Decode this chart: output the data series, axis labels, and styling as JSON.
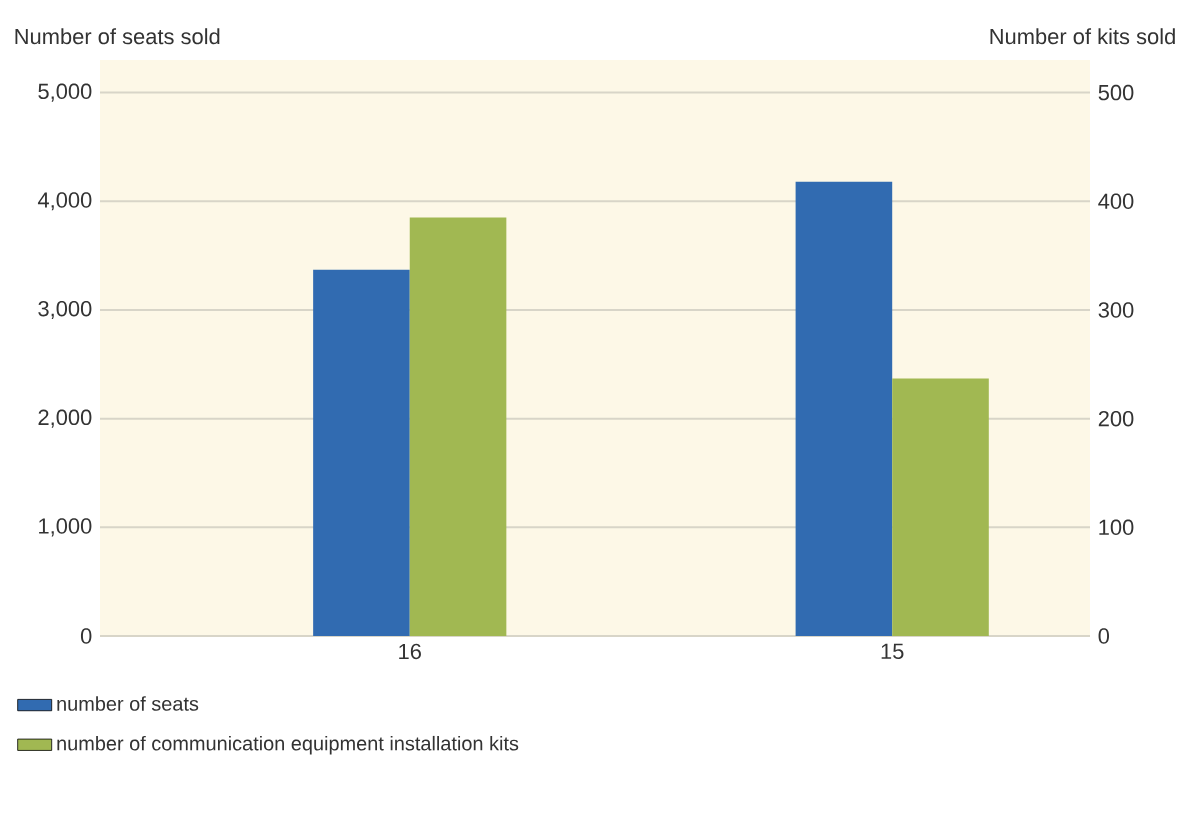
{
  "chart_data": {
    "type": "bar",
    "ylabel": "Number of seats sold",
    "y2label": "Number of kits sold",
    "categories": [
      "16",
      "15"
    ],
    "series": [
      {
        "name": "number of seats",
        "color": "#316bb1",
        "values": [
          3370,
          4180
        ]
      },
      {
        "name": "number of communication equipment installation kits",
        "color": "#a1b852",
        "values": [
          385,
          237
        ],
        "axis": "y2"
      }
    ],
    "ylim": [
      0,
      5300
    ],
    "yticks": [
      0,
      {
        "value": 1000,
        "label": "1,000"
      },
      {
        "value": 2000,
        "label": "2,000"
      },
      {
        "value": 3000,
        "label": "3,000"
      },
      {
        "value": 4000,
        "label": "4,000"
      },
      {
        "value": 5000,
        "label": "5,000"
      }
    ],
    "y2lim": [
      0,
      530
    ],
    "y2ticks": [
      0,
      100,
      200,
      300,
      400,
      500
    ],
    "grid": "y",
    "legend": "bottom"
  }
}
